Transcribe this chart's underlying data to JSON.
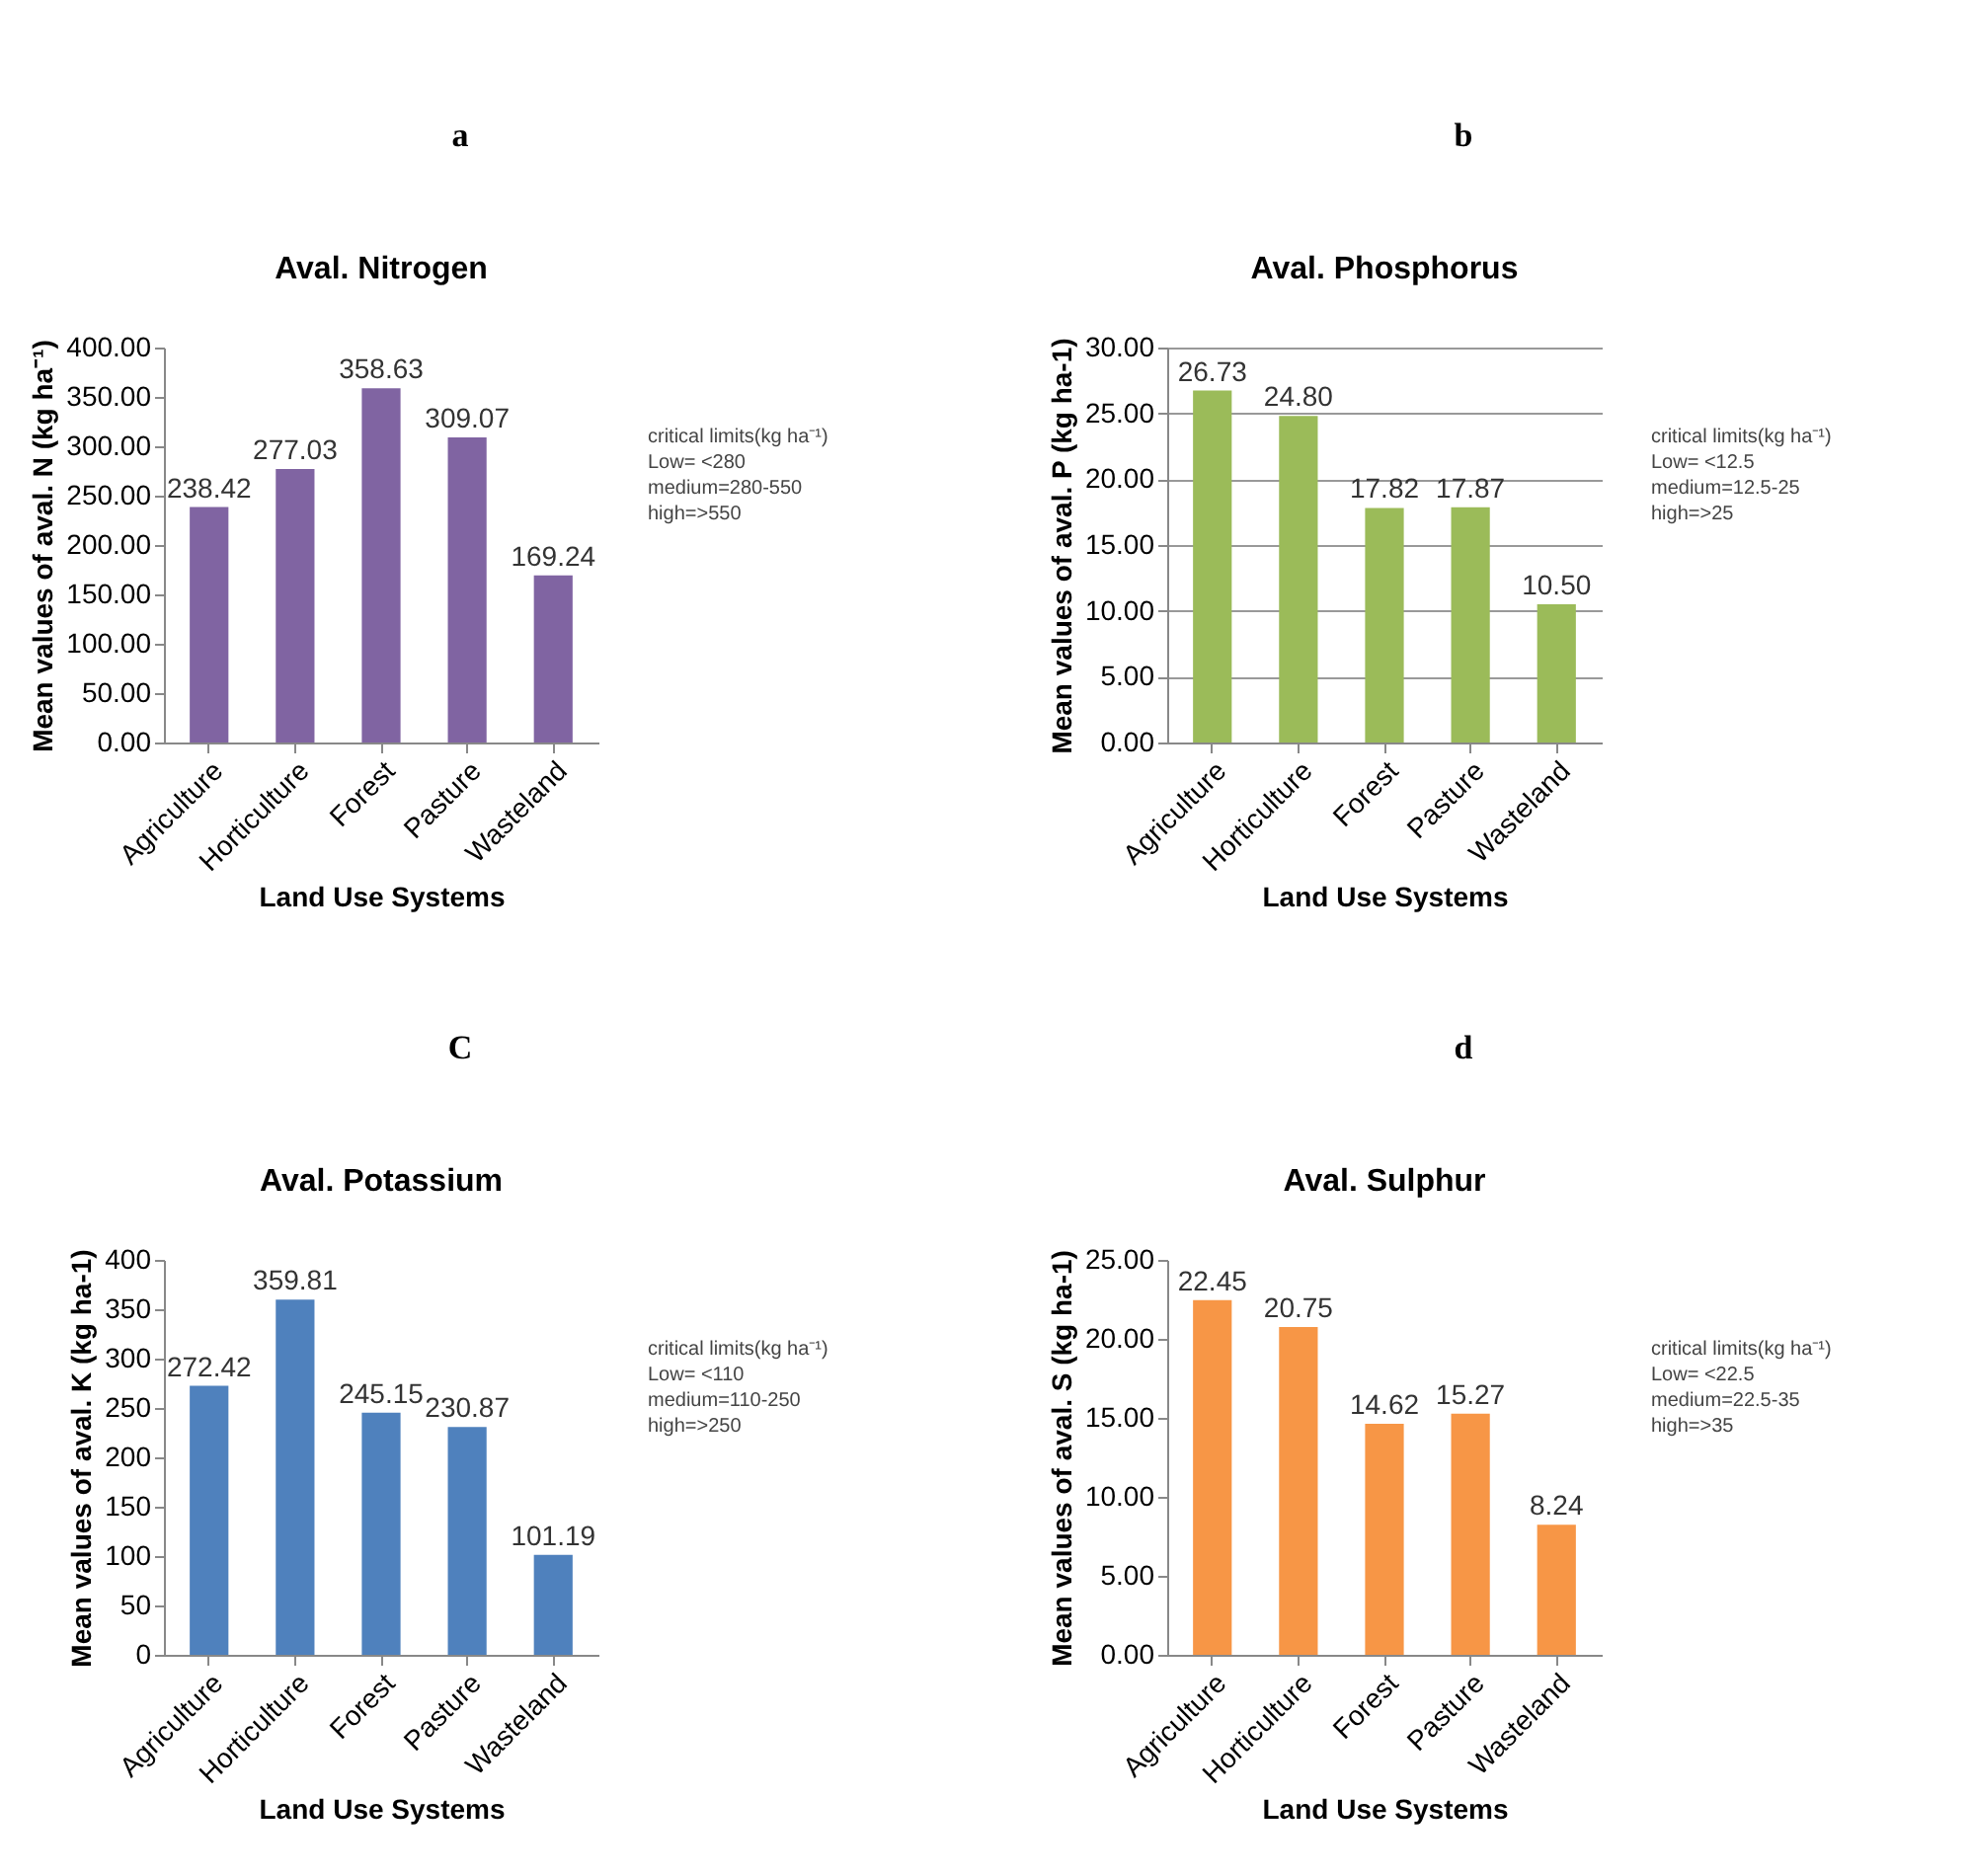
{
  "chart_data": [
    {
      "type": "bar",
      "title": "Aval. Nitrogen",
      "xlabel": "Land Use Systems",
      "ylabel": "Mean values of aval. N (kg ha⁻¹)",
      "categories": [
        "Agriculture",
        "Horticulture",
        "Forest",
        "Pasture",
        "Wasteland"
      ],
      "values": [
        238.42,
        277.03,
        358.63,
        309.07,
        169.24
      ],
      "value_labels": [
        "238.42",
        "277.03",
        "358.63",
        "309.07",
        "169.24"
      ],
      "color": "#8064a2",
      "ylim": [
        0,
        400
      ],
      "yticks": [
        {
          "value": 0,
          "label": "0.00"
        },
        {
          "value": 50,
          "label": "50.00"
        },
        {
          "value": 100,
          "label": "100.00"
        },
        {
          "value": 150,
          "label": "150.00"
        },
        {
          "value": 200,
          "label": "200.00"
        },
        {
          "value": 250,
          "label": "250.00"
        },
        {
          "value": 300,
          "label": "300.00"
        },
        {
          "value": 350,
          "label": "350.00"
        },
        {
          "value": 400,
          "label": "400.00"
        }
      ],
      "grid": false,
      "annotations": [
        "a",
        "critical limits(kg ha⁻¹)",
        "Low= <280",
        "medium=280-550",
        "high=>550"
      ]
    },
    {
      "type": "bar",
      "title": "Aval. Phosphorus",
      "xlabel": "Land Use Systems",
      "ylabel": "Mean values of aval. P (kg ha-1)",
      "categories": [
        "Agriculture",
        "Horticulture",
        "Forest",
        "Pasture",
        "Wasteland"
      ],
      "values": [
        26.73,
        24.8,
        17.82,
        17.87,
        10.5
      ],
      "value_labels": [
        "26.73",
        "24.80",
        "17.82",
        "17.87",
        "10.50"
      ],
      "color": "#9bbb59",
      "ylim": [
        0,
        30
      ],
      "yticks": [
        {
          "value": 0,
          "label": "0.00"
        },
        {
          "value": 5,
          "label": "5.00"
        },
        {
          "value": 10,
          "label": "10.00"
        },
        {
          "value": 15,
          "label": "15.00"
        },
        {
          "value": 20,
          "label": "20.00"
        },
        {
          "value": 25,
          "label": "25.00"
        },
        {
          "value": 30,
          "label": "30.00"
        }
      ],
      "grid": "y",
      "annotations": [
        "b",
        "critical limits(kg ha⁻¹)",
        "Low= <12.5",
        "medium=12.5-25",
        "high=>25"
      ]
    },
    {
      "type": "bar",
      "title": "Aval. Potassium",
      "xlabel": "Land Use Systems",
      "ylabel": "Mean values of aval. K (kg ha-1)",
      "categories": [
        "Agriculture",
        "Horticulture",
        "Forest",
        "Pasture",
        "Wasteland"
      ],
      "values": [
        272.42,
        359.81,
        245.15,
        230.87,
        101.19
      ],
      "value_labels": [
        "272.42",
        "359.81",
        "245.15",
        "230.87",
        "101.19"
      ],
      "color": "#4f81bd",
      "ylim": [
        0,
        400
      ],
      "yticks": [
        0,
        50,
        100,
        150,
        200,
        250,
        300,
        350,
        400
      ],
      "grid": false,
      "annotations": [
        "C",
        "critical limits(kg ha⁻¹)",
        "Low= <110",
        "medium=110-250",
        "high=>250"
      ]
    },
    {
      "type": "bar",
      "title": "Aval. Sulphur",
      "xlabel": "Land Use Systems",
      "ylabel": "Mean values of aval. S (kg ha-1)",
      "categories": [
        "Agriculture",
        "Horticulture",
        "Forest",
        "Pasture",
        "Wasteland"
      ],
      "values": [
        22.45,
        20.75,
        14.62,
        15.27,
        8.24
      ],
      "value_labels": [
        "22.45",
        "20.75",
        "14.62",
        "15.27",
        "8.24"
      ],
      "color": "#f79646",
      "ylim": [
        0,
        25
      ],
      "yticks": [
        {
          "value": 0,
          "label": "0.00"
        },
        {
          "value": 5,
          "label": "5.00"
        },
        {
          "value": 10,
          "label": "10.00"
        },
        {
          "value": 15,
          "label": "15.00"
        },
        {
          "value": 20,
          "label": "20.00"
        },
        {
          "value": 25,
          "label": "25.00"
        }
      ],
      "grid": false,
      "annotations": [
        "d",
        "critical limits(kg ha⁻¹)",
        "Low= <22.5",
        "medium=22.5-35",
        "high=>35"
      ]
    }
  ]
}
